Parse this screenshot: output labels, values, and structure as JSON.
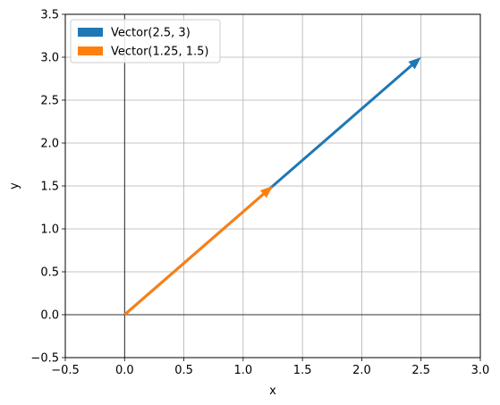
{
  "chart_data": {
    "type": "quiver",
    "xlabel": "x",
    "ylabel": "y",
    "xlim": [
      -0.5,
      3.0
    ],
    "ylim": [
      -0.5,
      3.5
    ],
    "xticks": [
      -0.5,
      0.0,
      0.5,
      1.0,
      1.5,
      2.0,
      2.5,
      3.0
    ],
    "xtick_labels": [
      "−0.5",
      "0.0",
      "0.5",
      "1.0",
      "1.5",
      "2.0",
      "2.5",
      "3.0"
    ],
    "yticks": [
      -0.5,
      0.0,
      0.5,
      1.0,
      1.5,
      2.0,
      2.5,
      3.0,
      3.5
    ],
    "ytick_labels": [
      "−0.5",
      "0.0",
      "0.5",
      "1.0",
      "1.5",
      "2.0",
      "2.5",
      "3.0",
      "3.5"
    ],
    "grid": true,
    "origin_axes": true,
    "legend_position": "top-left",
    "series": [
      {
        "name": "Vector(2.5, 3)",
        "start": [
          0,
          0
        ],
        "end": [
          2.5,
          3.0
        ],
        "color": "#1f77b4"
      },
      {
        "name": "Vector(1.25, 1.5)",
        "start": [
          0,
          0
        ],
        "end": [
          1.25,
          1.5
        ],
        "color": "#ff7f0e"
      }
    ]
  }
}
